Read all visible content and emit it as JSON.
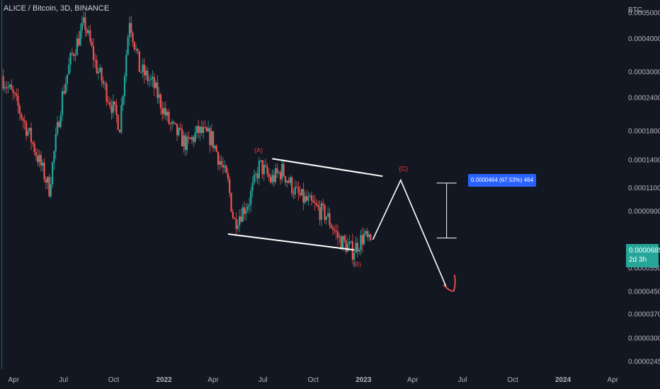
{
  "header": {
    "title": "ALICE / Bitcoin, 3D, BINANCE"
  },
  "price_axis": {
    "currency": "BTC",
    "last_price": "0.0000685",
    "countdown": "2d 3h"
  },
  "measure": {
    "label": "0.0000464 (67.53%) 464"
  },
  "colors": {
    "background": "#131722",
    "up": "#26a69a",
    "down": "#ef5350",
    "wave_label": "#f23645",
    "drawing": "#ffffff",
    "measure_bg": "#2962ff"
  },
  "chart_data": {
    "type": "candlestick",
    "scale": "log",
    "x_ticks": [
      "Apr",
      "Jul",
      "Oct",
      "2022",
      "Apr",
      "Jul",
      "Oct",
      "2023",
      "Apr",
      "Jul",
      "Oct",
      "2024",
      "Apr"
    ],
    "y_ticks": [
      "0.0005000",
      "0.0004000",
      "0.0003000",
      "0.0002400",
      "0.0001800",
      "0.0001400",
      "0.0001100",
      "0.0000900",
      "0.0000550",
      "0.0000450",
      "0.0000370",
      "0.0000300",
      "0.0000245"
    ],
    "y_tick_values": [
      0.0005,
      0.0004,
      0.0003,
      0.00024,
      0.00018,
      0.00014,
      0.00011,
      9e-05,
      5.5e-05,
      4.5e-05,
      3.7e-05,
      3e-05,
      2.45e-05
    ],
    "ylim": [
      2.3e-05,
      0.00056
    ],
    "xlim": [
      "2021-03-07",
      "2024-04-20"
    ],
    "price_path": [
      {
        "date": "2021-03-13",
        "price": 0.00029
      },
      {
        "date": "2021-04-05",
        "price": 0.00024
      },
      {
        "date": "2021-05-05",
        "price": 0.00017
      },
      {
        "date": "2021-06-08",
        "price": 0.00011
      },
      {
        "date": "2021-07-01",
        "price": 0.00024
      },
      {
        "date": "2021-07-18",
        "price": 0.00034
      },
      {
        "date": "2021-08-12",
        "price": 0.00046
      },
      {
        "date": "2021-09-01",
        "price": 0.00032
      },
      {
        "date": "2021-09-25",
        "price": 0.00024
      },
      {
        "date": "2021-10-15",
        "price": 0.00019
      },
      {
        "date": "2021-11-02",
        "price": 0.00048
      },
      {
        "date": "2021-11-20",
        "price": 0.00031
      },
      {
        "date": "2021-12-15",
        "price": 0.00027
      },
      {
        "date": "2022-01-15",
        "price": 0.00019
      },
      {
        "date": "2022-02-15",
        "price": 0.00016
      },
      {
        "date": "2022-03-08",
        "price": 0.00018
      },
      {
        "date": "2022-04-01",
        "price": 0.00017
      },
      {
        "date": "2022-05-01",
        "price": 0.000115
      },
      {
        "date": "2022-05-12",
        "price": 8.2e-05
      },
      {
        "date": "2022-06-08",
        "price": 9.8e-05
      },
      {
        "date": "2022-06-28",
        "price": 0.000135
      },
      {
        "date": "2022-07-18",
        "price": 0.000118
      },
      {
        "date": "2022-08-08",
        "price": 0.000128
      },
      {
        "date": "2022-09-05",
        "price": 0.000104
      },
      {
        "date": "2022-10-05",
        "price": 9.4e-05
      },
      {
        "date": "2022-10-28",
        "price": 8.7e-05
      },
      {
        "date": "2022-11-20",
        "price": 7.1e-05
      },
      {
        "date": "2022-12-15",
        "price": 6.4e-05
      },
      {
        "date": "2023-01-05",
        "price": 7.3e-05
      },
      {
        "date": "2023-01-14",
        "price": 6.85e-05
      }
    ],
    "annotations": [
      {
        "label": "(A)",
        "date": "2022-06-23",
        "price": 0.00015
      },
      {
        "label": "(B)",
        "date": "2022-12-20",
        "price": 5.6e-05
      },
      {
        "label": "(C)",
        "date": "2023-03-15",
        "price": 0.000128
      }
    ],
    "wedge": {
      "upper": [
        {
          "date": "2022-07-18",
          "price": 0.000142
        },
        {
          "date": "2023-02-05",
          "price": 0.000122
        }
      ],
      "lower": [
        {
          "date": "2022-04-28",
          "price": 7.4e-05
        },
        {
          "date": "2022-12-15",
          "price": 6.45e-05
        }
      ]
    },
    "projection": [
      {
        "date": "2023-01-18",
        "price": 7.05e-05
      },
      {
        "date": "2023-03-10",
        "price": 0.000118
      },
      {
        "date": "2023-06-01",
        "price": 4.7e-05
      }
    ],
    "measure_range": {
      "date": "2023-06-02",
      "from": 7.15e-05,
      "to": 0.000115
    }
  }
}
